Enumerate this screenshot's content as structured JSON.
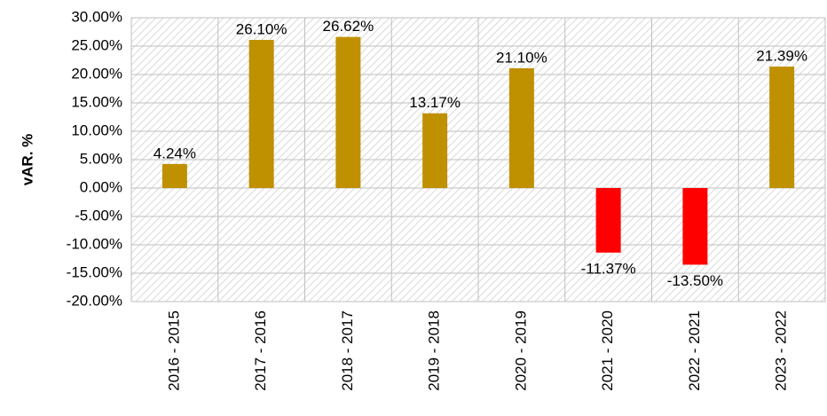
{
  "chart_data": {
    "type": "bar",
    "y_label": "vAR. %",
    "categories": [
      "2016 - 2015",
      "2017 - 2016",
      "2018 - 2017",
      "2019 - 2018",
      "2020 - 2019",
      "2021 - 2020",
      "2022 - 2021",
      "2023 - 2022"
    ],
    "values": [
      4.24,
      26.1,
      26.62,
      13.17,
      21.1,
      -11.37,
      -13.5,
      21.39
    ],
    "value_labels": [
      "4.24%",
      "26.10%",
      "26.62%",
      "13.17%",
      "21.10%",
      "-11.37%",
      "-13.50%",
      "21.39%"
    ],
    "colors": [
      "#bf9000",
      "#bf9000",
      "#bf9000",
      "#bf9000",
      "#bf9000",
      "#ff0000",
      "#ff0000",
      "#bf9000"
    ],
    "ylim": [
      -20,
      30
    ],
    "yticks": [
      {
        "value": -20,
        "label": "-20.00%"
      },
      {
        "value": -15,
        "label": "-15.00%"
      },
      {
        "value": -10,
        "label": "-10.00%"
      },
      {
        "value": -5,
        "label": "-5.00%"
      },
      {
        "value": 0,
        "label": "0.00%"
      },
      {
        "value": 5,
        "label": "5.00%"
      },
      {
        "value": 10,
        "label": "10.00%"
      },
      {
        "value": 15,
        "label": "15.00%"
      },
      {
        "value": 20,
        "label": "20.00%"
      },
      {
        "value": 25,
        "label": "25.00%"
      },
      {
        "value": 30,
        "label": "30.00%"
      }
    ],
    "grid": true
  }
}
